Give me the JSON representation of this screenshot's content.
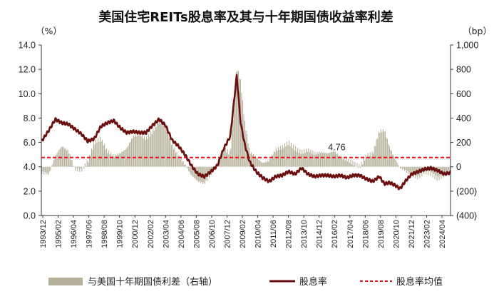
{
  "chart_data": {
    "type": "line",
    "title": "美国住宅REITs股息率及其与十年期国债收益率利差",
    "left_axis": {
      "unit": "（%）",
      "ylim": [
        0,
        14
      ],
      "ticks": [
        "0.0",
        "2.0",
        "4.0",
        "6.0",
        "8.0",
        "10.0",
        "12.0",
        "14.0"
      ]
    },
    "right_axis": {
      "unit": "（bp）",
      "ylim": [
        -400,
        1000
      ],
      "ticks": [
        "(400)",
        "(200)",
        "0",
        "200",
        "400",
        "600",
        "800",
        "1,000"
      ]
    },
    "x_range": [
      1993.917,
      2025.5
    ],
    "x_ticks": [
      "1993/12",
      "1995/02",
      "1996/04",
      "1997/06",
      "1998/08",
      "1999/10",
      "2000/12",
      "2002/02",
      "2003/04",
      "2004/06",
      "2005/08",
      "2006/10",
      "2007/12",
      "2009/02",
      "2010/04",
      "2011/06",
      "2012/08",
      "2013/10",
      "2014/12",
      "2016/02",
      "2017/04",
      "2018/06",
      "2019/08",
      "2020/10",
      "2021/12",
      "2023/02",
      "2024/04"
    ],
    "series": [
      {
        "name": "与美国十年期国债利差（右轴）",
        "type": "bar",
        "axis": "right",
        "color": "#b5b09a",
        "x": [
          1994.0,
          1994.5,
          1995.0,
          1995.5,
          1996.0,
          1996.5,
          1997.0,
          1997.5,
          1998.0,
          1998.5,
          1999.0,
          1999.5,
          2000.0,
          2000.5,
          2001.0,
          2001.5,
          2002.0,
          2002.5,
          2003.0,
          2003.5,
          2004.0,
          2004.5,
          2005.0,
          2005.5,
          2006.0,
          2006.5,
          2007.0,
          2007.5,
          2008.0,
          2008.5,
          2009.0,
          2009.3,
          2009.6,
          2010.0,
          2010.5,
          2011.0,
          2011.5,
          2012.0,
          2012.5,
          2013.0,
          2013.5,
          2014.0,
          2014.5,
          2015.0,
          2015.5,
          2016.0,
          2016.5,
          2017.0,
          2017.5,
          2018.0,
          2018.5,
          2019.0,
          2019.5,
          2020.0,
          2020.4,
          2020.8,
          2021.2,
          2021.6,
          2022.0,
          2022.5,
          2023.0,
          2023.5,
          2024.0,
          2024.5,
          2025.0,
          2025.4
        ],
        "values": [
          -50,
          -60,
          90,
          170,
          130,
          -20,
          -30,
          40,
          200,
          230,
          130,
          90,
          110,
          150,
          250,
          270,
          230,
          290,
          380,
          340,
          180,
          90,
          20,
          -70,
          -120,
          -140,
          -60,
          20,
          150,
          110,
          820,
          700,
          380,
          120,
          80,
          30,
          50,
          140,
          160,
          200,
          150,
          120,
          140,
          110,
          120,
          110,
          130,
          80,
          60,
          30,
          0,
          90,
          110,
          290,
          300,
          160,
          70,
          -10,
          -30,
          -70,
          -90,
          -40,
          -60,
          -100,
          -70,
          -40
        ]
      },
      {
        "name": "股息率",
        "type": "line",
        "axis": "left",
        "color": "#6b0f0f",
        "x": [
          1994.0,
          1994.5,
          1995.0,
          1995.5,
          1996.0,
          1996.5,
          1997.0,
          1997.5,
          1998.0,
          1998.5,
          1999.0,
          1999.5,
          2000.0,
          2000.5,
          2001.0,
          2001.5,
          2002.0,
          2002.5,
          2003.0,
          2003.5,
          2004.0,
          2004.5,
          2005.0,
          2005.5,
          2006.0,
          2006.5,
          2007.0,
          2007.5,
          2008.0,
          2008.5,
          2009.0,
          2009.3,
          2009.6,
          2010.0,
          2010.5,
          2011.0,
          2011.5,
          2012.0,
          2012.5,
          2013.0,
          2013.5,
          2014.0,
          2014.5,
          2015.0,
          2015.5,
          2016.0,
          2016.5,
          2017.0,
          2017.5,
          2018.0,
          2018.5,
          2019.0,
          2019.5,
          2020.0,
          2020.4,
          2020.8,
          2021.2,
          2021.6,
          2022.0,
          2022.5,
          2023.0,
          2023.5,
          2024.0,
          2024.5,
          2025.0,
          2025.4
        ],
        "values": [
          6.2,
          7.0,
          7.9,
          7.6,
          7.5,
          7.1,
          6.7,
          6.1,
          6.3,
          7.3,
          7.6,
          7.8,
          7.2,
          6.8,
          6.9,
          6.8,
          6.8,
          7.4,
          7.9,
          7.4,
          6.2,
          5.7,
          5.0,
          4.1,
          3.4,
          3.2,
          3.6,
          4.1,
          5.5,
          6.5,
          11.5,
          7.6,
          5.9,
          4.4,
          3.6,
          3.1,
          2.8,
          3.2,
          3.3,
          3.6,
          3.4,
          3.9,
          3.4,
          3.2,
          3.3,
          3.3,
          3.2,
          3.3,
          3.1,
          3.3,
          3.3,
          3.0,
          2.8,
          3.2,
          2.6,
          2.7,
          2.5,
          2.2,
          2.8,
          3.4,
          3.6,
          3.8,
          3.9,
          3.7,
          3.4,
          3.5
        ]
      },
      {
        "name": "股息率均值",
        "type": "hline",
        "axis": "left",
        "color": "#e8141b",
        "value": 4.76
      }
    ],
    "annotation": "4.76",
    "legend_placement": "bottom"
  }
}
